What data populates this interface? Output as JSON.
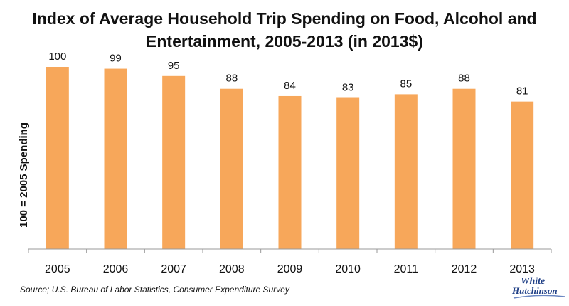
{
  "chart_data": {
    "type": "bar",
    "title_lines": [
      "Index of Average Household Trip Spending on Food, Alcohol and",
      "Entertainment, 2005-2013 (in 2013$)"
    ],
    "ylabel": "100 = 2005 Spending",
    "xlabel": "",
    "categories": [
      "2005",
      "2006",
      "2007",
      "2008",
      "2009",
      "2010",
      "2011",
      "2012",
      "2013"
    ],
    "values": [
      100,
      99,
      95,
      88,
      84,
      83,
      85,
      88,
      81
    ],
    "ylim": [
      0,
      110
    ],
    "grid": false,
    "legend": "none",
    "bar_color": "#F7A75A",
    "axis_color": "#999999"
  },
  "source": "Source; U.S. Bureau of Labor Statistics, Consumer Expenditure Survey",
  "logo": {
    "line1": "White",
    "line2": "Hutchinson",
    "color": "#1f3f86"
  }
}
